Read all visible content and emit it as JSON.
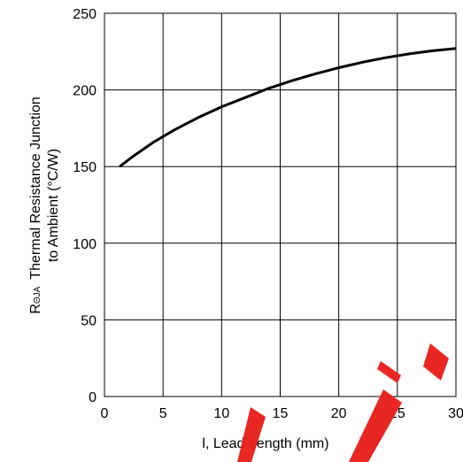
{
  "chart_data": {
    "type": "line",
    "xlabel": "l, Lead Length (mm)",
    "ylabel": {
      "symbol": "R",
      "subscript": "ΘJA",
      "line1_rest": "Thermal Resistance Junction",
      "line2": "to Ambient (°C/W)"
    },
    "xlim": [
      0,
      30
    ],
    "ylim": [
      0,
      250
    ],
    "x_ticks": [
      "0",
      "5",
      "10",
      "15",
      "20",
      "25",
      "30"
    ],
    "y_ticks": [
      "0",
      "50",
      "100",
      "150",
      "200",
      "250"
    ],
    "grid": true,
    "series": [
      {
        "color": "#000000",
        "x": [
          1.3,
          2.5,
          4.2,
          6.0,
          8.0,
          10.0,
          12.0,
          14.0,
          16.0,
          18.0,
          20.0,
          22.0,
          24.0,
          26.0,
          28.0,
          30.0
        ],
        "y": [
          150.0,
          157.0,
          166.0,
          174.0,
          182.0,
          189.0,
          195.0,
          201.0,
          206.0,
          210.5,
          214.5,
          218.0,
          221.0,
          223.5,
          225.5,
          227.0
        ]
      }
    ]
  },
  "watermark": {
    "text": "OBSOLETE",
    "color": "#e8201c"
  }
}
